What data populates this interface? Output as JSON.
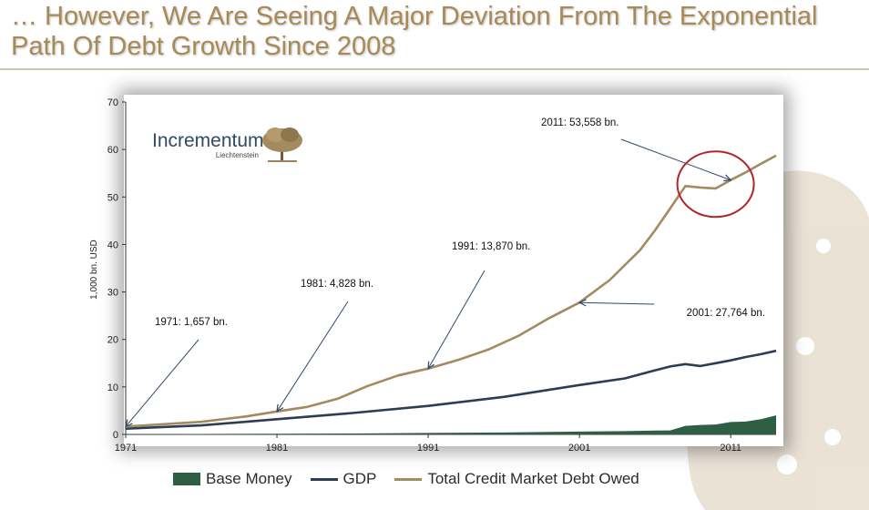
{
  "title": "… However, We Are Seeing A Major Deviation From The Exponential Path Of Debt Growth Since 2008",
  "logo": {
    "name": "Incrementum",
    "subtitle": "Liechtenstein"
  },
  "chart_data": {
    "type": "area",
    "title": "",
    "xlabel": "",
    "ylabel": "1,000 bn. USD",
    "xlim": [
      1971,
      2014
    ],
    "ylim": [
      0,
      70
    ],
    "xticks": [
      1971,
      1981,
      1991,
      2001,
      2011
    ],
    "yticks": [
      0,
      10,
      20,
      30,
      40,
      50,
      60,
      70
    ],
    "grid": false,
    "legend_position": "bottom",
    "series": [
      {
        "name": "Base Money",
        "type": "area",
        "color": "#2e5e44",
        "x": [
          1971,
          1976,
          1981,
          1986,
          1991,
          1996,
          2001,
          2004,
          2006,
          2007,
          2008,
          2009,
          2010,
          2011,
          2012,
          2013,
          2014
        ],
        "y": [
          0.06,
          0.1,
          0.15,
          0.2,
          0.3,
          0.4,
          0.6,
          0.7,
          0.8,
          0.85,
          1.8,
          2.0,
          2.1,
          2.6,
          2.7,
          3.2,
          4.0
        ]
      },
      {
        "name": "GDP",
        "type": "line",
        "color": "#2d3d55",
        "x": [
          1971,
          1976,
          1981,
          1986,
          1991,
          1996,
          2001,
          2004,
          2006,
          2007,
          2008,
          2009,
          2010,
          2011,
          2012,
          2013,
          2014
        ],
        "y": [
          1.2,
          1.9,
          3.2,
          4.5,
          6.0,
          7.9,
          10.4,
          11.8,
          13.5,
          14.3,
          14.8,
          14.4,
          15.0,
          15.6,
          16.3,
          16.9,
          17.6
        ]
      },
      {
        "name": "Total Credit Market Debt Owed",
        "type": "line",
        "color": "#a38a5f",
        "x": [
          1971,
          1973,
          1976,
          1979,
          1981,
          1983,
          1985,
          1987,
          1989,
          1991,
          1993,
          1995,
          1997,
          1999,
          2001,
          2003,
          2005,
          2006,
          2007,
          2008,
          2009,
          2010,
          2011,
          2012,
          2013,
          2014
        ],
        "y": [
          1.657,
          2.05,
          2.65,
          3.8,
          4.828,
          5.8,
          7.5,
          10.2,
          12.4,
          13.87,
          15.7,
          17.9,
          20.8,
          24.5,
          27.764,
          32.5,
          38.8,
          43.0,
          47.6,
          52.3,
          52.0,
          51.8,
          53.558,
          55.2,
          57.0,
          58.7
        ]
      }
    ],
    "annotations": [
      {
        "text": "1971: 1,657 bn."
      },
      {
        "text": "1981: 4,828 bn."
      },
      {
        "text": "1991: 13,870 bn."
      },
      {
        "text": "2001: 27,764 bn."
      },
      {
        "text": "2011: 53,558 bn."
      }
    ]
  }
}
